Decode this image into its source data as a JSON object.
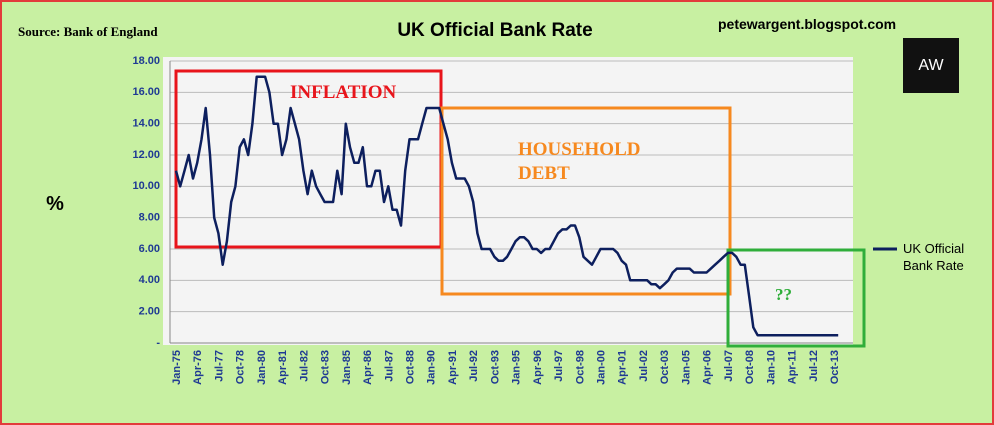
{
  "chart_data": {
    "type": "line",
    "title": "UK Official Bank Rate",
    "source": "Source: Bank of England",
    "website": "petewargent.blogspot.com",
    "logo": "AW",
    "y_label": "%",
    "annotations": [
      "INFLATION",
      "HOUSEHOLD DEBT",
      "??"
    ],
    "categories": [
      "Jan-75",
      null,
      null,
      null,
      null,
      "Apr-76",
      null,
      null,
      null,
      null,
      "Jul-77",
      null,
      null,
      null,
      null,
      "Oct-78",
      null,
      null,
      null,
      null,
      "Jan-80",
      null,
      null,
      null,
      null,
      "Apr-81",
      null,
      null,
      null,
      null,
      "Jul-82",
      null,
      null,
      null,
      null,
      "Oct-83",
      null,
      null,
      null,
      null,
      "Jan-85",
      null,
      null,
      null,
      null,
      "Apr-86",
      null,
      null,
      null,
      null,
      "Jul-87",
      null,
      null,
      null,
      null,
      "Oct-88",
      null,
      null,
      null,
      null,
      "Jan-90",
      null,
      null,
      null,
      null,
      "Apr-91",
      null,
      null,
      null,
      null,
      "Jul-92",
      null,
      null,
      null,
      null,
      "Oct-93",
      null,
      null,
      null,
      null,
      "Jan-95",
      null,
      null,
      null,
      null,
      "Apr-96",
      null,
      null,
      null,
      null,
      "Jul-97",
      null,
      null,
      null,
      null,
      "Oct-98",
      null,
      null,
      null,
      null,
      "Jan-00",
      null,
      null,
      null,
      null,
      "Apr-01",
      null,
      null,
      null,
      null,
      "Jul-02",
      null,
      null,
      null,
      null,
      "Oct-03",
      null,
      null,
      null,
      null,
      "Jan-05",
      null,
      null,
      null,
      null,
      "Apr-06",
      null,
      null,
      null,
      null,
      "Jul-07",
      null,
      null,
      null,
      null,
      "Oct-08",
      null,
      null,
      null,
      null,
      "Jan-10",
      null,
      null,
      null,
      null,
      "Apr-11",
      null,
      null,
      null,
      null,
      "Jul-12",
      null,
      null,
      null,
      null,
      "Oct-13",
      null
    ],
    "series": [
      {
        "name": "UK Official Bank Rate",
        "color": "#0d1f5e",
        "values": [
          11.0,
          10.0,
          11.0,
          12.0,
          10.5,
          11.5,
          13.0,
          15.0,
          12.0,
          8.0,
          7.0,
          5.0,
          6.5,
          9.0,
          10.0,
          12.5,
          13.0,
          12.0,
          14.0,
          17.0,
          17.0,
          17.0,
          16.0,
          14.0,
          14.0,
          12.0,
          13.0,
          15.0,
          14.0,
          13.0,
          11.0,
          9.5,
          11.0,
          10.0,
          9.5,
          9.0,
          9.0,
          9.0,
          11.0,
          9.5,
          14.0,
          12.5,
          11.5,
          11.5,
          12.5,
          10.0,
          10.0,
          11.0,
          11.0,
          9.0,
          10.0,
          8.5,
          8.5,
          7.5,
          11.0,
          13.0,
          13.0,
          13.0,
          14.0,
          15.0,
          15.0,
          15.0,
          15.0,
          14.0,
          13.0,
          11.5,
          10.5,
          10.5,
          10.5,
          10.0,
          9.0,
          7.0,
          6.0,
          6.0,
          6.0,
          5.5,
          5.25,
          5.25,
          5.5,
          6.0,
          6.5,
          6.75,
          6.75,
          6.5,
          6.0,
          6.0,
          5.75,
          6.0,
          6.0,
          6.5,
          7.0,
          7.25,
          7.25,
          7.5,
          7.5,
          6.75,
          5.5,
          5.25,
          5.0,
          5.5,
          6.0,
          6.0,
          6.0,
          6.0,
          5.75,
          5.25,
          5.0,
          4.0,
          4.0,
          4.0,
          4.0,
          4.0,
          3.75,
          3.75,
          3.5,
          3.75,
          4.0,
          4.5,
          4.75,
          4.75,
          4.75,
          4.75,
          4.5,
          4.5,
          4.5,
          4.5,
          4.75,
          5.0,
          5.25,
          5.5,
          5.75,
          5.75,
          5.5,
          5.0,
          5.0,
          3.0,
          1.0,
          0.5,
          0.5,
          0.5,
          0.5,
          0.5,
          0.5,
          0.5,
          0.5,
          0.5,
          0.5,
          0.5,
          0.5,
          0.5,
          0.5,
          0.5,
          0.5,
          0.5,
          0.5,
          0.5,
          0.5
        ]
      }
    ],
    "ylim": [
      0,
      18
    ],
    "yticks": [
      {
        "value": 0,
        "label": "-"
      },
      {
        "value": 2,
        "label": "2.00"
      },
      {
        "value": 4,
        "label": "4.00"
      },
      {
        "value": 6,
        "label": "6.00"
      },
      {
        "value": 8,
        "label": "8.00"
      },
      {
        "value": 10,
        "label": "10.00"
      },
      {
        "value": 12,
        "label": "12.00"
      },
      {
        "value": 14,
        "label": "14.00"
      },
      {
        "value": 16,
        "label": "16.00"
      },
      {
        "value": 18,
        "label": "18.00"
      }
    ],
    "grid": true,
    "legend": "right"
  }
}
